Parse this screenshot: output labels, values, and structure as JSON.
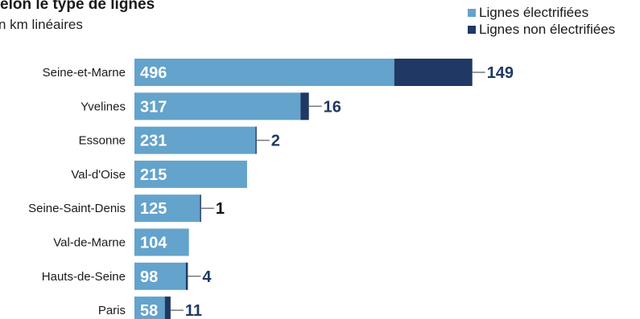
{
  "title": "elon le type de lignes",
  "subtitle": "n km linéaires",
  "colors": {
    "electrified": "#63a3cc",
    "non_electrified": "#1f3864",
    "leader": "#7a7a7a",
    "label_dark": "#1f3864",
    "label_black": "#111111"
  },
  "legend": [
    {
      "label": "Lignes électrifiées",
      "color": "#63a3cc"
    },
    {
      "label": "Lignes non électrifiées",
      "color": "#1f3864"
    }
  ],
  "chart_data": {
    "type": "bar",
    "orientation": "horizontal",
    "stacked": true,
    "categories": [
      "Seine-et-Marne",
      "Yvelines",
      "Essonne",
      "Val-d'Oise",
      "Seine-Saint-Denis",
      "Val-de-Marne",
      "Hauts-de-Seine",
      "Paris"
    ],
    "series": [
      {
        "name": "Lignes électrifiées",
        "values": [
          496,
          317,
          231,
          215,
          125,
          104,
          98,
          58
        ]
      },
      {
        "name": "Lignes non électrifiées",
        "values": [
          149,
          16,
          2,
          0,
          1,
          0,
          4,
          11
        ]
      }
    ],
    "title": "elon le type de lignes",
    "subtitle": "n km linéaires",
    "legend_position": "top-right",
    "grid": false
  }
}
